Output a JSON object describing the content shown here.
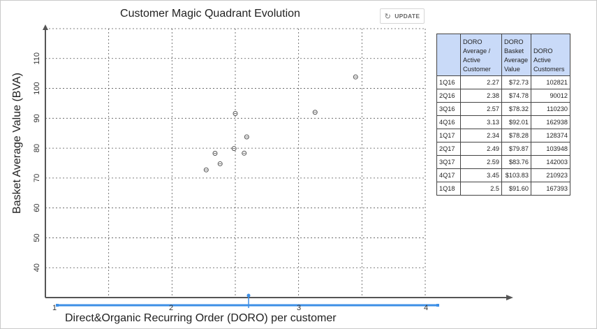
{
  "chart_data": {
    "type": "scatter",
    "title": "Customer Magic Quadrant Evolution",
    "xlabel": "Direct&Organic Recurring Order (DORO) per customer",
    "ylabel": "Basket Average Value (BVA)",
    "xlim": [
      1,
      4
    ],
    "ylim": [
      30,
      120
    ],
    "x_ticks": [
      1,
      2,
      3,
      4
    ],
    "y_ticks": [
      40,
      50,
      60,
      70,
      80,
      90,
      100,
      110
    ],
    "grid": true,
    "points": [
      {
        "x": 2.27,
        "y": 72.73
      },
      {
        "x": 2.38,
        "y": 74.78
      },
      {
        "x": 2.57,
        "y": 78.32
      },
      {
        "x": 3.13,
        "y": 92.01
      },
      {
        "x": 2.34,
        "y": 78.28
      },
      {
        "x": 2.49,
        "y": 79.87
      },
      {
        "x": 2.59,
        "y": 83.76
      },
      {
        "x": 3.45,
        "y": 103.83
      },
      {
        "x": 2.5,
        "y": 91.6
      }
    ]
  },
  "toolbar": {
    "update_label": "UPDATE",
    "update_icon": "refresh-icon"
  },
  "table": {
    "headers": [
      "",
      "DORO Average / Active Customer",
      "DORO Basket Average Value",
      "DORO Active Customers"
    ],
    "rows": [
      [
        "1Q16",
        "2.27",
        "$72.73",
        "102821"
      ],
      [
        "2Q16",
        "2.38",
        "$74.78",
        "90012"
      ],
      [
        "3Q16",
        "2.57",
        "$78.32",
        "110230"
      ],
      [
        "4Q16",
        "3.13",
        "$92.01",
        "162938"
      ],
      [
        "1Q17",
        "2.34",
        "$78.28",
        "128374"
      ],
      [
        "2Q17",
        "2.49",
        "$79.87",
        "103948"
      ],
      [
        "3Q17",
        "2.59",
        "$83.76",
        "142003"
      ],
      [
        "4Q17",
        "3.45",
        "$103.83",
        "210923"
      ],
      [
        "1Q18",
        "2.5",
        "$91.60",
        "167393"
      ]
    ]
  },
  "colors": {
    "range_slider": "#3d8fe6",
    "table_header_bg": "#c9daf8",
    "grid": "#555555",
    "axis": "#555555"
  }
}
